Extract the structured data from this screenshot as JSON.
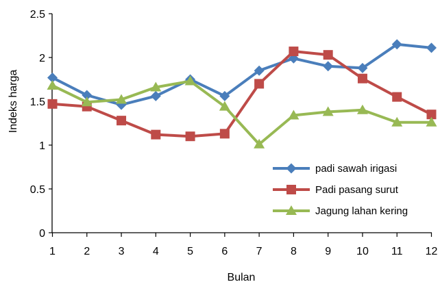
{
  "chart_data": {
    "type": "line",
    "title": "",
    "xlabel": "Bulan",
    "ylabel": "Indeks harga",
    "x": [
      1,
      2,
      3,
      4,
      5,
      6,
      7,
      8,
      9,
      10,
      11,
      12
    ],
    "ylim": [
      0,
      2.5
    ],
    "yticks": [
      "0",
      "0.5",
      "1",
      "1.5",
      "2",
      "2.5"
    ],
    "grid": false,
    "legend_position": "bottom-right",
    "series": [
      {
        "name": "padi sawah irigasi",
        "color": "#4a7ebb",
        "marker": "diamond",
        "values": [
          1.77,
          1.57,
          1.46,
          1.56,
          1.75,
          1.56,
          1.85,
          1.99,
          1.9,
          1.88,
          2.15,
          2.11
        ]
      },
      {
        "name": "Padi pasang surut",
        "color": "#be4b48",
        "marker": "square",
        "values": [
          1.47,
          1.44,
          1.28,
          1.12,
          1.1,
          1.13,
          1.7,
          2.07,
          2.03,
          1.76,
          1.55,
          1.35
        ]
      },
      {
        "name": "Jagung lahan kering",
        "color": "#98b954",
        "marker": "triangle",
        "values": [
          1.68,
          1.49,
          1.52,
          1.66,
          1.73,
          1.44,
          1.01,
          1.34,
          1.38,
          1.4,
          1.26,
          1.26
        ]
      }
    ]
  }
}
